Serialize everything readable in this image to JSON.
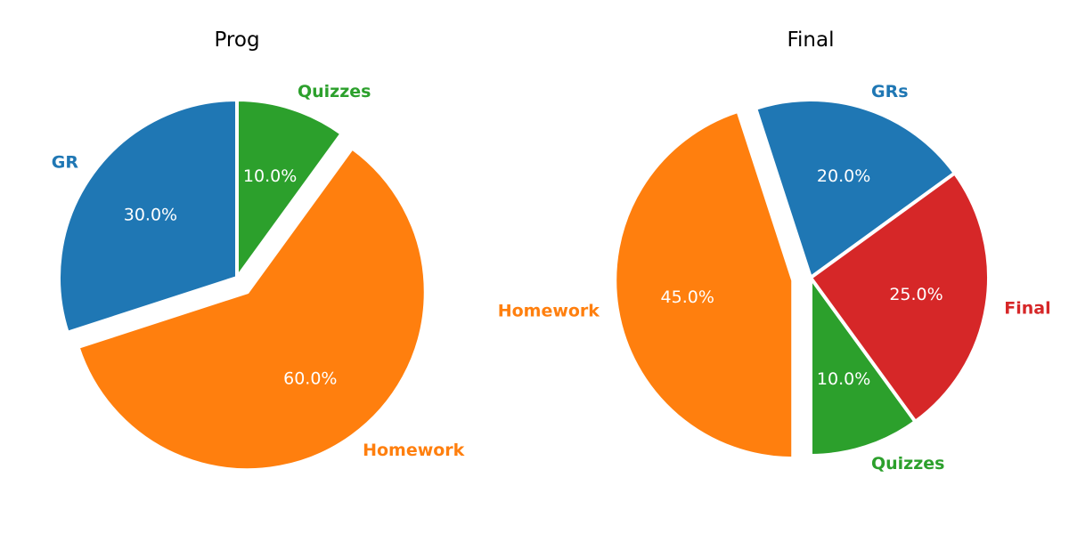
{
  "chart_data": [
    {
      "type": "pie",
      "title": "Prog",
      "slices": [
        {
          "label": "GR",
          "value": 30,
          "pct_label": "30.0%",
          "color": "#1f77b4",
          "explode": false
        },
        {
          "label": "Homework",
          "value": 60,
          "pct_label": "60.0%",
          "color": "#ff7f0e",
          "explode": true
        },
        {
          "label": "Quizzes",
          "value": 10,
          "pct_label": "10.0%",
          "color": "#2ca02c",
          "explode": false
        }
      ]
    },
    {
      "type": "pie",
      "title": "Final",
      "slices": [
        {
          "label": "GRs",
          "value": 20,
          "pct_label": "20.0%",
          "color": "#1f77b4",
          "explode": false
        },
        {
          "label": "Homework",
          "value": 45,
          "pct_label": "45.0%",
          "color": "#ff7f0e",
          "explode": true
        },
        {
          "label": "Quizzes",
          "value": 10,
          "pct_label": "10.0%",
          "color": "#2ca02c",
          "explode": false
        },
        {
          "label": "Final",
          "value": 25,
          "pct_label": "25.0%",
          "color": "#d62728",
          "explode": false
        }
      ]
    }
  ]
}
